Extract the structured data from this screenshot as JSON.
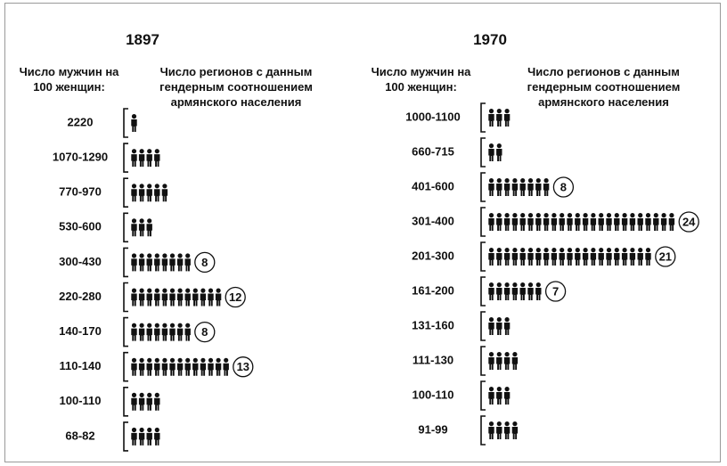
{
  "chart_data": [
    {
      "type": "pictogram",
      "title": "1897",
      "x_label": "Число мужчин на 100 женщин:",
      "y_label": "Число регионов с данным гендерным соотношением армянского населения",
      "categories": [
        "2220",
        "1070-1290",
        "770-970",
        "530-600",
        "300-430",
        "220-280",
        "140-170",
        "110-140",
        "100-110",
        "68-82"
      ],
      "values": [
        1,
        4,
        5,
        3,
        8,
        12,
        8,
        13,
        4,
        4
      ],
      "value_labels": [
        null,
        null,
        null,
        null,
        "8",
        "12",
        "8",
        "13",
        null,
        null
      ],
      "color": "#111111"
    },
    {
      "type": "pictogram",
      "title": "1970",
      "x_label": "Число мужчин на 100 женщин:",
      "y_label": "Число регионов с данным гендерным соотношением армянского населения",
      "categories": [
        "1000-1100",
        "660-715",
        "401-600",
        "301-400",
        "201-300",
        "161-200",
        "131-160",
        "111-130",
        "100-110",
        "91-99"
      ],
      "values": [
        3,
        2,
        8,
        24,
        21,
        7,
        3,
        4,
        3,
        4
      ],
      "value_labels": [
        null,
        null,
        "8",
        "24",
        "21",
        "7",
        null,
        null,
        null,
        null
      ],
      "color": "#111111"
    }
  ]
}
